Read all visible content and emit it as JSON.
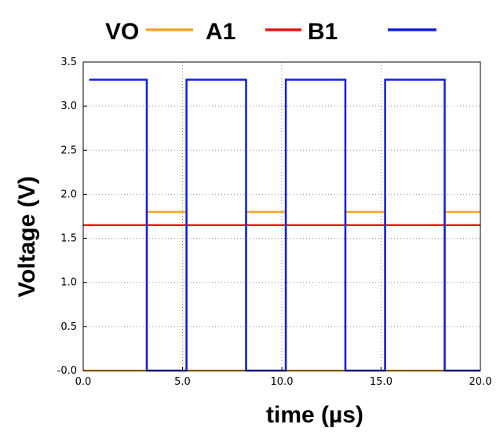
{
  "chart_data": {
    "type": "line",
    "xlabel": "time (µs)",
    "ylabel": "Voltage  (V)",
    "xlim": [
      0,
      20
    ],
    "ylim": [
      0,
      3.5
    ],
    "x_ticks": [
      "0.0",
      "5.0",
      "10.0",
      "15.0",
      "20.0"
    ],
    "x_tick_values": [
      0,
      5,
      10,
      15,
      20
    ],
    "y_ticks": [
      "-0.0",
      "0.5",
      "1.0",
      "1.5",
      "2.0",
      "2.5",
      "3.0",
      "3.5"
    ],
    "y_tick_values": [
      0,
      0.5,
      1.0,
      1.5,
      2.0,
      2.5,
      3.0,
      3.5
    ],
    "grid": true,
    "legend_position": "top",
    "legend": [
      {
        "label": "VO",
        "color": "#f5a623"
      },
      {
        "label": "A1",
        "color": "#ee1111"
      },
      {
        "label": "B1",
        "color": "#0a1ee6"
      }
    ],
    "series": [
      {
        "name": "VO",
        "color": "#f5a623",
        "x": [
          0,
          3.2,
          3.2,
          5.2,
          5.2,
          8.2,
          8.2,
          10.2,
          10.2,
          13.2,
          13.2,
          15.2,
          15.2,
          18.2,
          18.2,
          20
        ],
        "y": [
          0,
          0,
          1.8,
          1.8,
          0,
          0,
          1.8,
          1.8,
          0,
          0,
          1.8,
          1.8,
          0,
          0,
          1.8,
          1.8
        ]
      },
      {
        "name": "A1",
        "color": "#ee1111",
        "x": [
          0,
          20
        ],
        "y": [
          1.65,
          1.65
        ]
      },
      {
        "name": "B1",
        "color": "#0a1ee6",
        "x": [
          0.3,
          3.2,
          3.2,
          5.2,
          5.2,
          8.2,
          8.2,
          10.2,
          10.2,
          13.2,
          13.2,
          15.2,
          15.2,
          18.2,
          18.2,
          20
        ],
        "y": [
          3.3,
          3.3,
          0,
          0,
          3.3,
          3.3,
          0,
          0,
          3.3,
          3.3,
          0,
          0,
          3.3,
          3.3,
          0,
          0
        ]
      }
    ]
  }
}
